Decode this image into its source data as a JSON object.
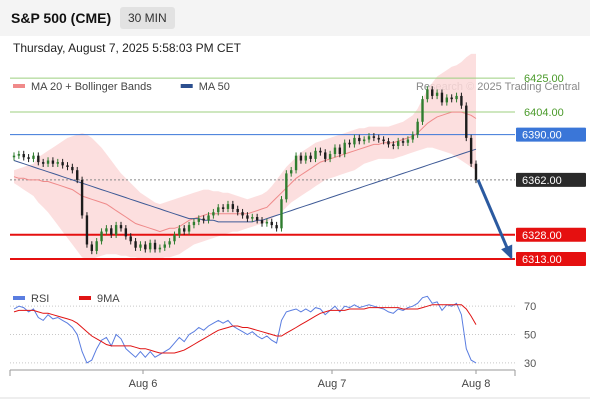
{
  "header": {
    "title": "S&P 500 (CME)",
    "interval": "30 MIN"
  },
  "timestamp": "Thursday, August 7, 2025 5:58:03 PM CET",
  "legend": {
    "items": [
      {
        "label": "MA 20 + Bollinger Bands",
        "color": "#f08a8a"
      },
      {
        "label": "MA 50",
        "color": "#2c4f8f"
      }
    ],
    "credit": "Research © 2025 Trading Central"
  },
  "chart_data": [
    {
      "type": "candlestick",
      "x_labels": [
        "Aug 6",
        "Aug 7",
        "Aug 8"
      ],
      "ylim": [
        6300,
        6435
      ],
      "levels": [
        {
          "value": 6425,
          "label": "6425.00",
          "role": "resistance",
          "color": "#4a9a2a",
          "line": "#9ccf7f"
        },
        {
          "value": 6404,
          "label": "6404.00",
          "role": "resistance",
          "color": "#4a9a2a",
          "line": "#9ccf7f"
        },
        {
          "value": 6390,
          "label": "6390.00",
          "role": "pivot",
          "color": "#3a76d8",
          "line": "#3a76d8"
        },
        {
          "value": 6362,
          "label": "6362.00",
          "role": "last",
          "color": "#2a2a2a",
          "line": "#888888"
        },
        {
          "value": 6328,
          "label": "6328.00",
          "role": "support",
          "color": "#e51010",
          "line": "#e51010"
        },
        {
          "value": 6313,
          "label": "6313.00",
          "role": "support",
          "color": "#e51010",
          "line": "#e51010"
        }
      ],
      "close": [
        6377,
        6378,
        6376,
        6375,
        6377,
        6373,
        6372,
        6374,
        6372,
        6373,
        6371,
        6370,
        6368,
        6362,
        6340,
        6322,
        6318,
        6324,
        6330,
        6332,
        6328,
        6334,
        6332,
        6327,
        6324,
        6320,
        6322,
        6319,
        6323,
        6319,
        6320,
        6322,
        6324,
        6328,
        6332,
        6330,
        6334,
        6336,
        6338,
        6337,
        6340,
        6342,
        6345,
        6344,
        6347,
        6344,
        6342,
        6340,
        6338,
        6339,
        6337,
        6335,
        6336,
        6334,
        6332,
        6350,
        6366,
        6368,
        6377,
        6374,
        6377,
        6375,
        6380,
        6379,
        6375,
        6378,
        6382,
        6378,
        6385,
        6384,
        6388,
        6386,
        6387,
        6389,
        6388,
        6387,
        6386,
        6384,
        6383,
        6386,
        6385,
        6387,
        6390,
        6398,
        6412,
        6418,
        6414,
        6416,
        6410,
        6413,
        6412,
        6414,
        6408,
        6388,
        6372,
        6362
      ],
      "bollinger_upper": [
        6368,
        6369,
        6370,
        6371,
        6372,
        6376,
        6378,
        6380,
        6382,
        6384,
        6386,
        6388,
        6389,
        6390,
        6391,
        6390,
        6388,
        6385,
        6382,
        6378,
        6374,
        6370,
        6366,
        6363,
        6360,
        6357,
        6354,
        6352,
        6350,
        6348,
        6347,
        6348,
        6349,
        6350,
        6351,
        6352,
        6353,
        6354,
        6355,
        6356,
        6356,
        6355,
        6355,
        6354,
        6354,
        6353,
        6352,
        6351,
        6350,
        6351,
        6352,
        6353,
        6355,
        6358,
        6362,
        6366,
        6370,
        6373,
        6376,
        6379,
        6381,
        6383,
        6385,
        6386,
        6387,
        6388,
        6389,
        6390,
        6391,
        6392,
        6393,
        6394,
        6394,
        6395,
        6395,
        6395,
        6395,
        6395,
        6396,
        6397,
        6398,
        6400,
        6402,
        6406,
        6412,
        6418,
        6422,
        6426,
        6428,
        6430,
        6432,
        6433,
        6435,
        6438,
        6440,
        6440
      ],
      "bollinger_lower": [
        6360,
        6358,
        6356,
        6354,
        6352,
        6348,
        6345,
        6342,
        6338,
        6334,
        6330,
        6326,
        6322,
        6318,
        6314,
        6313,
        6313,
        6314,
        6315,
        6316,
        6316,
        6316,
        6315,
        6315,
        6314,
        6314,
        6313,
        6313,
        6313,
        6313,
        6313,
        6314,
        6314,
        6315,
        6316,
        6318,
        6320,
        6322,
        6323,
        6324,
        6325,
        6326,
        6327,
        6328,
        6329,
        6330,
        6330,
        6331,
        6332,
        6333,
        6334,
        6335,
        6336,
        6338,
        6340,
        6342,
        6345,
        6348,
        6350,
        6352,
        6354,
        6356,
        6358,
        6360,
        6362,
        6363,
        6364,
        6365,
        6366,
        6367,
        6368,
        6370,
        6372,
        6373,
        6374,
        6375,
        6375,
        6375,
        6375,
        6376,
        6377,
        6378,
        6379,
        6380,
        6381,
        6382,
        6382,
        6381,
        6380,
        6379,
        6378,
        6376,
        6374,
        6372,
        6370,
        6368
      ],
      "ma20": [
        6364,
        6363,
        6363,
        6362,
        6362,
        6362,
        6361,
        6361,
        6360,
        6359,
        6358,
        6357,
        6356,
        6354,
        6352,
        6351,
        6350,
        6349,
        6348,
        6347,
        6345,
        6343,
        6341,
        6339,
        6337,
        6335,
        6334,
        6333,
        6332,
        6331,
        6330,
        6331,
        6332,
        6332,
        6333,
        6335,
        6337,
        6338,
        6339,
        6340,
        6341,
        6341,
        6341,
        6341,
        6341,
        6341,
        6341,
        6341,
        6341,
        6342,
        6343,
        6344,
        6345,
        6348,
        6351,
        6354,
        6357,
        6360,
        6363,
        6365,
        6367,
        6369,
        6371,
        6373,
        6374,
        6375,
        6376,
        6377,
        6378,
        6379,
        6380,
        6381,
        6382,
        6383,
        6384,
        6384,
        6385,
        6385,
        6385,
        6386,
        6387,
        6388,
        6389,
        6391,
        6394,
        6397,
        6399,
        6401,
        6402,
        6403,
        6404,
        6404,
        6404,
        6403,
        6402,
        6400
      ],
      "ma50": [
        6374,
        6373,
        6372,
        6371,
        6370,
        6369,
        6368,
        6367,
        6366,
        6365,
        6364,
        6363,
        6362,
        6361,
        6360,
        6359,
        6358,
        6357,
        6356,
        6355,
        6354,
        6353,
        6352,
        6351,
        6350,
        6349,
        6348,
        6347,
        6346,
        6345,
        6344,
        6343,
        6342,
        6341,
        6340,
        6339,
        6338,
        6338,
        6338,
        6337,
        6337,
        6337,
        6336,
        6336,
        6336,
        6336,
        6336,
        6336,
        6336,
        6336,
        6337,
        6337,
        6338,
        6339,
        6340,
        6341,
        6342,
        6343,
        6344,
        6345,
        6346,
        6347,
        6348,
        6349,
        6350,
        6351,
        6352,
        6353,
        6354,
        6355,
        6356,
        6357,
        6358,
        6359,
        6360,
        6361,
        6362,
        6363,
        6364,
        6365,
        6366,
        6367,
        6368,
        6369,
        6370,
        6371,
        6372,
        6373,
        6374,
        6375,
        6376,
        6377,
        6378,
        6379,
        6380,
        6381
      ],
      "forecast": {
        "from": 6362,
        "to": 6313
      }
    },
    {
      "type": "line",
      "legend": [
        {
          "label": "RSI",
          "color": "#5a7de0"
        },
        {
          "label": "9MA",
          "color": "#e01414"
        }
      ],
      "y_ticks": [
        30,
        50,
        70
      ],
      "ylim": [
        25,
        80
      ],
      "rsi": [
        68,
        70,
        69,
        66,
        68,
        62,
        60,
        64,
        61,
        62,
        60,
        58,
        55,
        50,
        38,
        30,
        32,
        40,
        46,
        48,
        42,
        50,
        47,
        40,
        37,
        34,
        38,
        34,
        38,
        34,
        36,
        38,
        40,
        44,
        48,
        45,
        50,
        52,
        55,
        53,
        56,
        58,
        60,
        58,
        60,
        56,
        54,
        52,
        50,
        52,
        49,
        47,
        49,
        46,
        44,
        60,
        66,
        67,
        68,
        66,
        68,
        66,
        69,
        68,
        64,
        67,
        70,
        66,
        70,
        69,
        71,
        69,
        70,
        71,
        70,
        69,
        68,
        66,
        65,
        68,
        67,
        69,
        70,
        72,
        76,
        77,
        72,
        73,
        67,
        71,
        70,
        72,
        64,
        40,
        32,
        30
      ],
      "ma9": [
        66,
        67,
        67,
        67,
        67,
        66,
        65,
        65,
        64,
        63,
        62,
        61,
        60,
        58,
        55,
        52,
        49,
        47,
        45,
        43,
        42,
        42,
        42,
        42,
        42,
        41,
        40,
        40,
        39,
        38,
        37,
        37,
        37,
        37,
        38,
        39,
        41,
        43,
        45,
        47,
        49,
        51,
        53,
        54,
        55,
        56,
        56,
        55,
        55,
        54,
        53,
        52,
        51,
        50,
        49,
        49,
        51,
        53,
        55,
        57,
        59,
        61,
        63,
        65,
        66,
        67,
        67,
        67,
        67,
        68,
        68,
        68,
        68,
        69,
        69,
        69,
        69,
        69,
        69,
        69,
        68,
        68,
        68,
        68,
        69,
        70,
        71,
        71,
        71,
        71,
        71,
        71,
        71,
        68,
        63,
        57
      ]
    }
  ]
}
